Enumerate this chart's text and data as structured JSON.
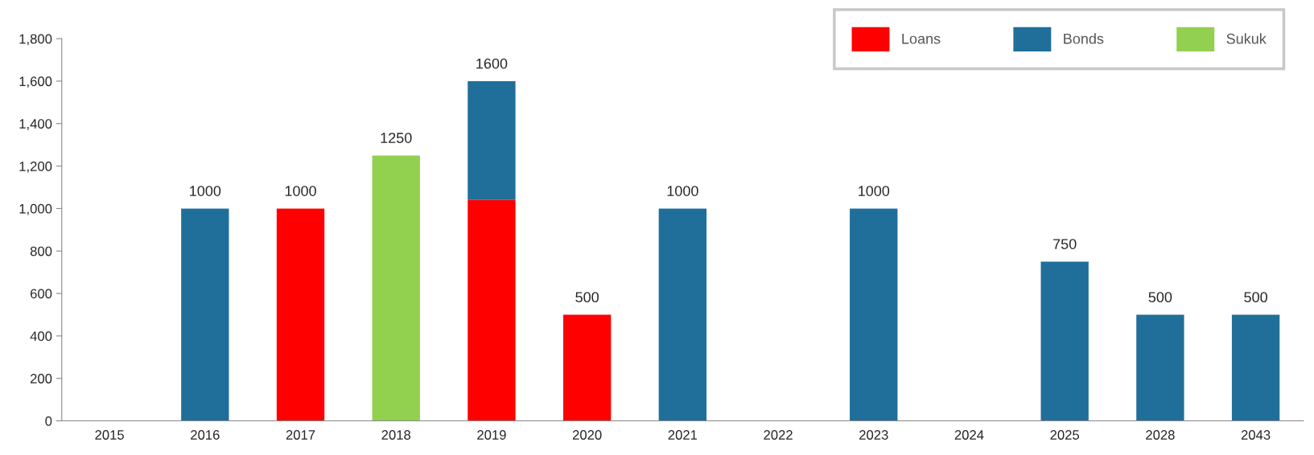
{
  "chart_data": {
    "type": "bar",
    "stacked": true,
    "categories": [
      "2015",
      "2016",
      "2017",
      "2018",
      "2019",
      "2020",
      "2021",
      "2022",
      "2023",
      "2024",
      "2025",
      "2028",
      "2043"
    ],
    "series": [
      {
        "name": "Loans",
        "color": "#ff0000",
        "values": [
          null,
          null,
          1000,
          null,
          1040,
          500,
          null,
          null,
          null,
          null,
          null,
          null,
          null
        ]
      },
      {
        "name": "Bonds",
        "color": "#1f6f9a",
        "values": [
          null,
          1000,
          null,
          null,
          560,
          null,
          1000,
          null,
          1000,
          null,
          750,
          500,
          500
        ]
      },
      {
        "name": "Sukuk",
        "color": "#92d050",
        "values": [
          null,
          null,
          null,
          1250,
          null,
          null,
          null,
          null,
          null,
          null,
          null,
          null,
          null
        ]
      }
    ],
    "totals": [
      null,
      "1000",
      "1000",
      "1250",
      "1600",
      "500",
      "1000",
      null,
      "1000",
      null,
      "750",
      "500",
      "500"
    ],
    "ylim": [
      0,
      1800
    ],
    "yticks": [
      0,
      200,
      400,
      600,
      800,
      {
        "value": 1000,
        "label": "1,000"
      },
      {
        "value": 1200,
        "label": "1,200"
      },
      {
        "value": 1400,
        "label": "1,400"
      },
      {
        "value": 1600,
        "label": "1,600"
      },
      {
        "value": 1800,
        "label": "1,800"
      }
    ],
    "grid": false,
    "legend": "top right"
  }
}
